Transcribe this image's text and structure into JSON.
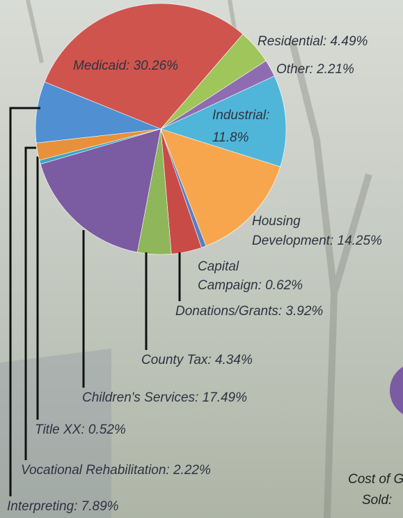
{
  "chart_data": {
    "type": "pie",
    "categories": [
      [
        "Medicaid: 30.26%"
      ],
      [
        "Residential: 4.49%"
      ],
      [
        "Other: 2.21%"
      ],
      [
        "Industrial:",
        "11.8%"
      ],
      [
        "Housing",
        "Development: 14.25%"
      ],
      [
        "Capital",
        "Campaign: 0.62%"
      ],
      [
        "Donations/Grants: 3.92%"
      ],
      [
        "County Tax: 4.34%"
      ],
      [
        "Children's Services: 17.49%"
      ],
      [
        "Title XX: 0.52%"
      ],
      [
        "Vocational Rehabilitation: 2.22%"
      ],
      [
        "Interpreting: 7.89%"
      ]
    ],
    "values": [
      30.26,
      4.49,
      2.21,
      11.8,
      14.25,
      0.62,
      3.92,
      4.34,
      17.49,
      0.52,
      2.22,
      7.89
    ],
    "colors": [
      "#d0544e",
      "#9fc55b",
      "#8f6cb2",
      "#4fb6da",
      "#f8a64e",
      "#5a7fc0",
      "#c94b47",
      "#8fb65b",
      "#7b5ba2",
      "#3aa6c8",
      "#e8913a",
      "#4f8fd2"
    ],
    "annotations": [
      "Cost of G",
      "Sold:"
    ]
  }
}
